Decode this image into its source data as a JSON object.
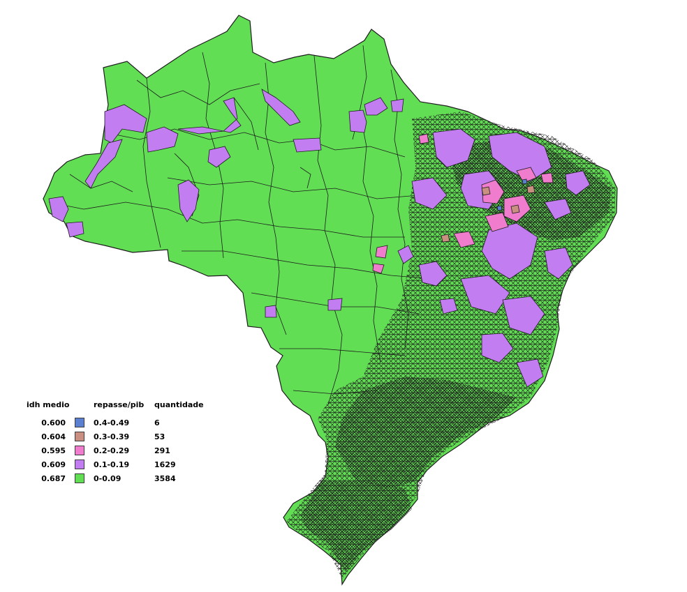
{
  "map": {
    "colors": {
      "border": "#1c1c1c",
      "purple": "#c27ef0",
      "pink": "#f07ccd",
      "brown": "#c98f80",
      "green": "#62de55",
      "blue": "#5b80cf"
    }
  },
  "legend": {
    "headers": {
      "idh": "idh medio",
      "range": "repasse/pib",
      "quantity": "quantidade"
    },
    "rows": [
      {
        "idh": "0.600",
        "range": "0.4-0.49",
        "quantity": "6",
        "color": "#5b80cf"
      },
      {
        "idh": "0.604",
        "range": "0.3-0.39",
        "quantity": "53",
        "color": "#c98f80"
      },
      {
        "idh": "0.595",
        "range": "0.2-0.29",
        "quantity": "291",
        "color": "#f07ccd"
      },
      {
        "idh": "0.609",
        "range": "0.1-0.19",
        "quantity": "1629",
        "color": "#c27ef0"
      },
      {
        "idh": "0.687",
        "range": "0-0.09",
        "quantity": "3584",
        "color": "#62de55"
      }
    ]
  }
}
